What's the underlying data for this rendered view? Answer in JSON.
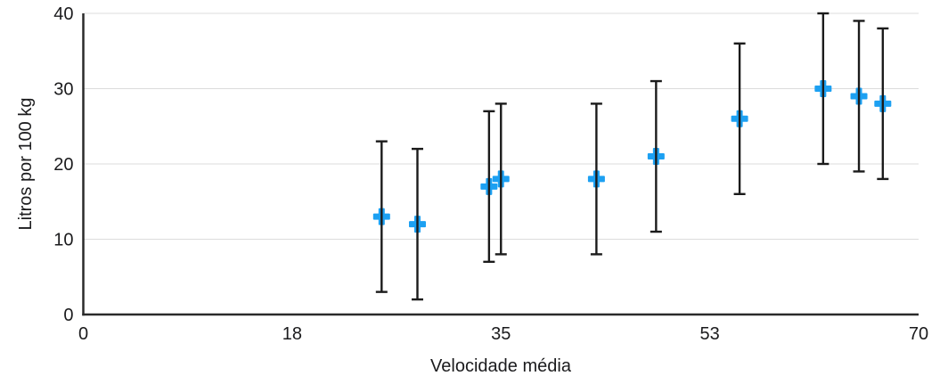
{
  "chart_data": {
    "type": "scatter",
    "title": "",
    "xlabel": "Velocidade média",
    "ylabel": "Litros por 100 kg",
    "xlim": [
      0,
      70
    ],
    "ylim": [
      0,
      40
    ],
    "grid": "horizontal",
    "legend_position": "none",
    "x_ticks": [
      {
        "pos": 0,
        "label": "0"
      },
      {
        "pos": 17.5,
        "label": "18"
      },
      {
        "pos": 35,
        "label": "35"
      },
      {
        "pos": 52.5,
        "label": "53"
      },
      {
        "pos": 70,
        "label": "70"
      }
    ],
    "y_ticks": [
      {
        "pos": 0,
        "label": "0"
      },
      {
        "pos": 10,
        "label": "10"
      },
      {
        "pos": 20,
        "label": "20"
      },
      {
        "pos": 30,
        "label": "30"
      },
      {
        "pos": 40,
        "label": "40"
      }
    ],
    "marker": {
      "shape": "plus",
      "color": "#1CA0F2",
      "size": 19,
      "arm_thickness": 7
    },
    "error_bars": {
      "type": "fixed-value",
      "value": 10,
      "color": "#1b1b1b",
      "cap_width": 13
    },
    "points": [
      {
        "x": 25,
        "y": 13,
        "err_minus": 10,
        "err_plus": 10
      },
      {
        "x": 28,
        "y": 12,
        "err_minus": 10,
        "err_plus": 10
      },
      {
        "x": 34,
        "y": 17,
        "err_minus": 10,
        "err_plus": 10
      },
      {
        "x": 35,
        "y": 18,
        "err_minus": 10,
        "err_plus": 10
      },
      {
        "x": 43,
        "y": 18,
        "err_minus": 10,
        "err_plus": 10
      },
      {
        "x": 48,
        "y": 21,
        "err_minus": 10,
        "err_plus": 10
      },
      {
        "x": 55,
        "y": 26,
        "err_minus": 10,
        "err_plus": 10
      },
      {
        "x": 62,
        "y": 30,
        "err_minus": 10,
        "err_plus": 10
      },
      {
        "x": 65,
        "y": 29,
        "err_minus": 10,
        "err_plus": 10
      },
      {
        "x": 67,
        "y": 28,
        "err_minus": 10,
        "err_plus": 10
      }
    ]
  },
  "colors": {
    "background": "#ffffff",
    "axis": "#2a2a2a",
    "gridline": "#dcdcdc",
    "text": "#1b1b1d",
    "marker": "#1CA0F2",
    "error_bar": "#1b1b1b"
  }
}
